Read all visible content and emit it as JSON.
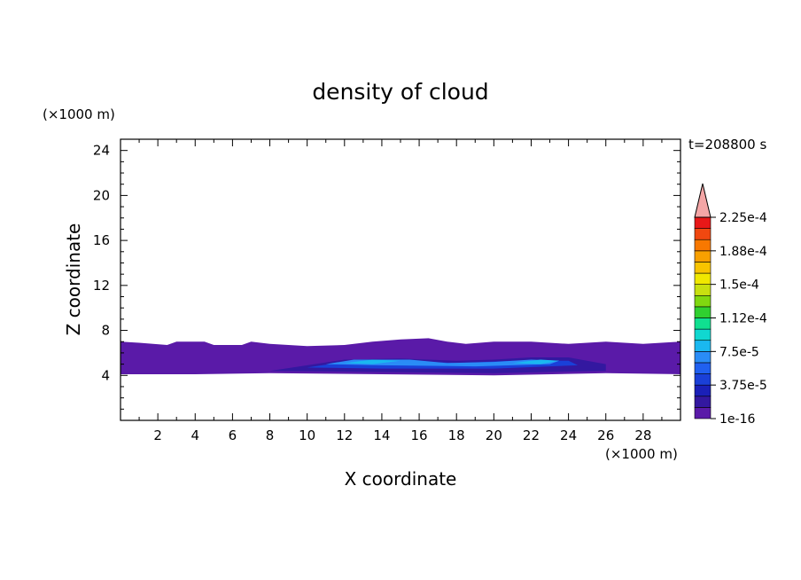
{
  "chart_data": {
    "type": "heatmap",
    "title": "density of cloud",
    "xlabel": "X coordinate",
    "ylabel": "Z coordinate",
    "x_unit": "(×1000 m)",
    "y_unit": "(×1000 m)",
    "time_label": "t=208800 s",
    "xlim": [
      0,
      30
    ],
    "ylim": [
      0,
      25
    ],
    "x_ticks": [
      2,
      4,
      6,
      8,
      10,
      12,
      14,
      16,
      18,
      20,
      22,
      24,
      26,
      28
    ],
    "y_ticks": [
      4,
      8,
      12,
      16,
      20,
      24
    ],
    "colorbar": {
      "labels": [
        "1e-16",
        "3.75e-5",
        "7.5e-5",
        "1.12e-4",
        "1.5e-4",
        "1.88e-4",
        "2.25e-4"
      ],
      "colors": [
        "#5a1aa8",
        "#3318a0",
        "#1a20b8",
        "#1a40d8",
        "#2060f0",
        "#2a8cf6",
        "#1ab8f0",
        "#10d8d0",
        "#10e090",
        "#30d030",
        "#80d810",
        "#c8e010",
        "#f0e800",
        "#f8c400",
        "#f8a000",
        "#f87800",
        "#f04810",
        "#e81818"
      ],
      "extend_color": "#f4a6a6"
    },
    "cloud_layer": {
      "z_range": [
        4,
        7
      ],
      "x_range": [
        0,
        30
      ],
      "core_x_range": [
        8,
        26
      ],
      "core_z_range": [
        4.5,
        5.5
      ],
      "max_region_x": [
        11,
        24
      ]
    }
  }
}
